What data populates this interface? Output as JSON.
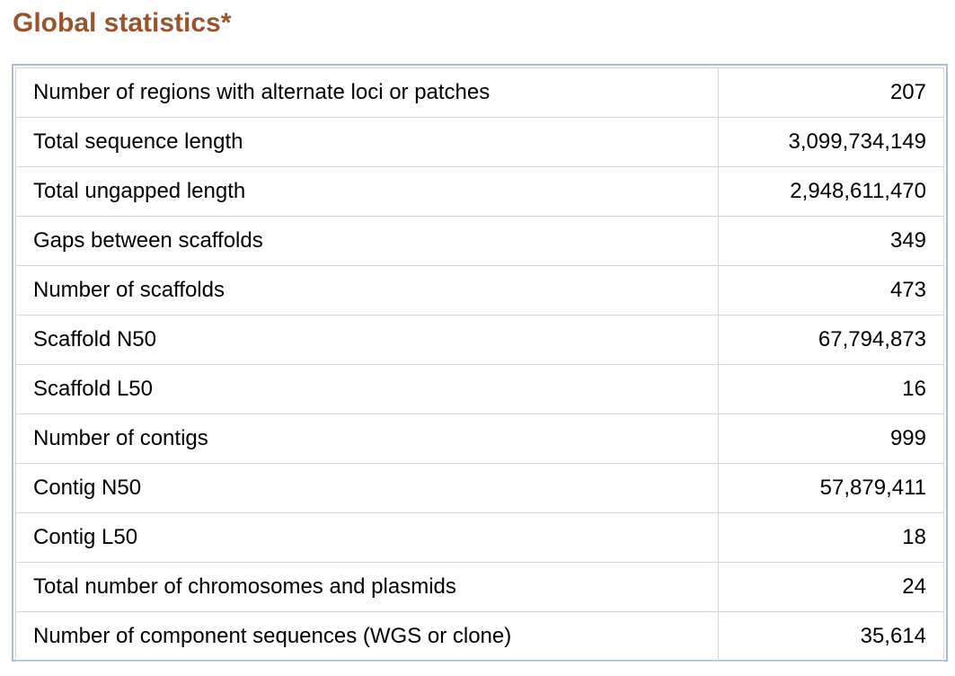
{
  "title": "Global statistics*",
  "rows": [
    {
      "label": "Number of regions with alternate loci or patches",
      "value": "207"
    },
    {
      "label": "Total sequence length",
      "value": "3,099,734,149"
    },
    {
      "label": "Total ungapped length",
      "value": "2,948,611,470"
    },
    {
      "label": "Gaps between scaffolds",
      "value": "349"
    },
    {
      "label": "Number of scaffolds",
      "value": "473"
    },
    {
      "label": "Scaffold N50",
      "value": "67,794,873"
    },
    {
      "label": "Scaffold L50",
      "value": "16"
    },
    {
      "label": "Number of contigs",
      "value": "999"
    },
    {
      "label": "Contig N50",
      "value": "57,879,411"
    },
    {
      "label": "Contig L50",
      "value": "18"
    },
    {
      "label": "Total number of chromosomes and plasmids",
      "value": "24"
    },
    {
      "label": "Number of component sequences (WGS or clone)",
      "value": "35,614"
    }
  ],
  "colors": {
    "title": "#98542e",
    "frame_border": "#a9bcd2",
    "cell_border": "#d6d6d6"
  }
}
